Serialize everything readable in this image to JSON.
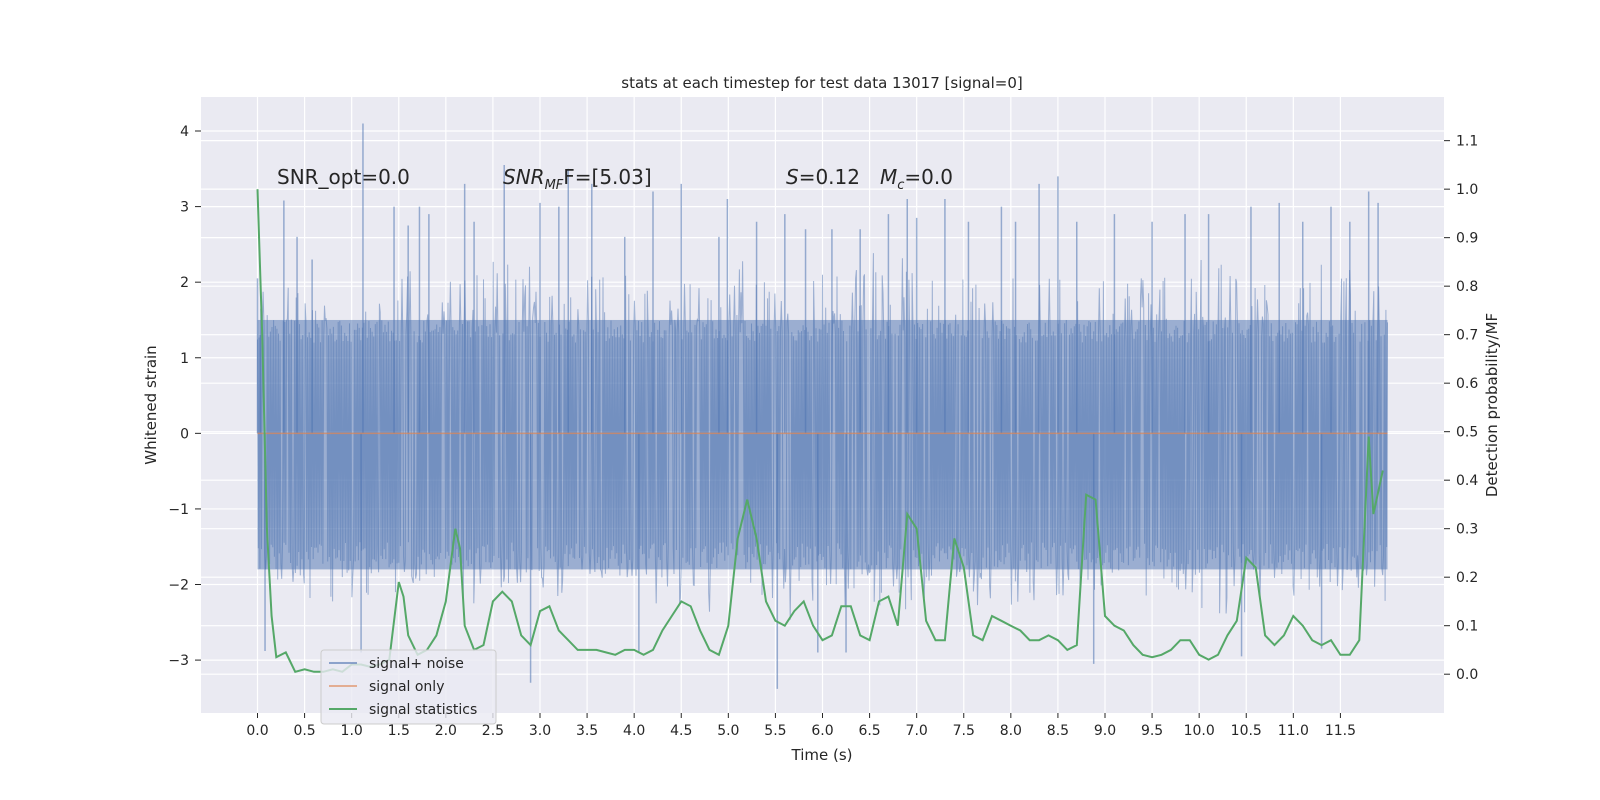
{
  "chart_data": {
    "type": "line",
    "title": "stats at each timestep for test data 13017 [signal=0]",
    "xlabel": "Time (s)",
    "ylabel_left": "Whitened strain",
    "ylabel_right": "Detection probability/MF",
    "xlim": [
      -0.6,
      12.6
    ],
    "ylim_left": [
      -3.7,
      4.45
    ],
    "ylim_right": [
      -0.08,
      1.19
    ],
    "grid": true,
    "legend_position": "lower-left",
    "x_ticks": [
      0.0,
      0.5,
      1.0,
      1.5,
      2.0,
      2.5,
      3.0,
      3.5,
      4.0,
      4.5,
      5.0,
      5.5,
      6.0,
      6.5,
      7.0,
      7.5,
      8.0,
      8.5,
      9.0,
      9.5,
      10.0,
      10.5,
      11.0,
      11.5
    ],
    "x_tick_labels": [
      "0.0",
      "0.5",
      "1.0",
      "1.5",
      "2.0",
      "2.5",
      "3.0",
      "3.5",
      "4.0",
      "4.5",
      "5.0",
      "5.5",
      "6.0",
      "6.5",
      "7.0",
      "7.5",
      "8.0",
      "8.5",
      "9.0",
      "9.5",
      "10.0",
      "10.5",
      "11.0",
      "11.5"
    ],
    "y_left_ticks": [
      -3,
      -2,
      -1,
      0,
      1,
      2,
      3,
      4
    ],
    "y_left_tick_labels": [
      "−3",
      "−2",
      "−1",
      "0",
      "1",
      "2",
      "3",
      "4"
    ],
    "y_right_ticks": [
      0.0,
      0.1,
      0.2,
      0.3,
      0.4,
      0.5,
      0.6,
      0.7,
      0.8,
      0.9,
      1.0,
      1.1
    ],
    "y_right_tick_labels": [
      "0.0",
      "0.1",
      "0.2",
      "0.3",
      "0.4",
      "0.5",
      "0.6",
      "0.7",
      "0.8",
      "0.9",
      "1.0",
      "1.1"
    ],
    "annotations": {
      "snr_opt": "SNR_opt=0.0",
      "snr_mf_main": "SNR",
      "snr_mf_sub": "MF",
      "snr_mf_value": "F=[5.03]",
      "s_main": "S",
      "s_value": "=0.12",
      "mc_main": "M",
      "mc_sub": "c",
      "mc_value": "=0.0"
    },
    "series": [
      {
        "name": "signal+ noise",
        "axis": "left",
        "color": "#4c72b0",
        "style": "dense noise, approx. uniform band ±1.5 with spikes",
        "t_start": 0.0,
        "t_end": 12.0,
        "band_upper": 1.5,
        "band_lower": -1.8,
        "envelope_upper": [
          2.0,
          2.1,
          1.8,
          2.4,
          2.1,
          2.3,
          2.0,
          2.2,
          1.9,
          2.0,
          2.3,
          2.1,
          2.2,
          2.4,
          2.1,
          2.0,
          2.2,
          2.3,
          2.1,
          2.2,
          2.4,
          2.0,
          2.3,
          2.2
        ],
        "envelope_lower": [
          -2.0,
          -2.3,
          -2.2,
          -2.0,
          -2.4,
          -2.1,
          -2.2,
          -2.0,
          -2.3,
          -2.4,
          -2.2,
          -2.5,
          -2.3,
          -2.4,
          -2.2,
          -2.3,
          -2.4,
          -2.2,
          -2.3,
          -2.2,
          -2.4,
          -2.3,
          -2.2,
          -2.3
        ],
        "spikes": [
          {
            "t": 0.0,
            "v": 2.05
          },
          {
            "t": 0.03,
            "v": 1.3
          },
          {
            "t": 0.08,
            "v": -2.88
          },
          {
            "t": 0.28,
            "v": 3.08
          },
          {
            "t": 0.42,
            "v": 2.6
          },
          {
            "t": 0.58,
            "v": 2.3
          },
          {
            "t": 1.12,
            "v": 4.1
          },
          {
            "t": 1.1,
            "v": -2.9
          },
          {
            "t": 1.45,
            "v": 3.0
          },
          {
            "t": 1.6,
            "v": 2.75
          },
          {
            "t": 1.72,
            "v": 3.0
          },
          {
            "t": 1.82,
            "v": 2.9
          },
          {
            "t": 2.2,
            "v": 3.3
          },
          {
            "t": 2.3,
            "v": 2.8
          },
          {
            "t": 2.62,
            "v": 3.55
          },
          {
            "t": 2.9,
            "v": -3.3
          },
          {
            "t": 3.0,
            "v": 3.05
          },
          {
            "t": 3.2,
            "v": 3.0
          },
          {
            "t": 3.3,
            "v": 3.5
          },
          {
            "t": 3.55,
            "v": 3.3
          },
          {
            "t": 3.9,
            "v": 2.6
          },
          {
            "t": 4.05,
            "v": -2.9
          },
          {
            "t": 4.2,
            "v": 3.2
          },
          {
            "t": 4.5,
            "v": 3.3
          },
          {
            "t": 4.9,
            "v": 2.6
          },
          {
            "t": 4.99,
            "v": 3.1
          },
          {
            "t": 5.3,
            "v": 2.8
          },
          {
            "t": 5.52,
            "v": -3.38
          },
          {
            "t": 5.6,
            "v": 2.9
          },
          {
            "t": 5.82,
            "v": 2.7
          },
          {
            "t": 5.95,
            "v": -2.9
          },
          {
            "t": 6.1,
            "v": 2.7
          },
          {
            "t": 6.25,
            "v": -2.9
          },
          {
            "t": 6.4,
            "v": 2.7
          },
          {
            "t": 6.7,
            "v": 2.9
          },
          {
            "t": 6.9,
            "v": 3.1
          },
          {
            "t": 7.0,
            "v": 2.85
          },
          {
            "t": 7.3,
            "v": 3.1
          },
          {
            "t": 7.55,
            "v": 2.8
          },
          {
            "t": 7.9,
            "v": 3.0
          },
          {
            "t": 8.05,
            "v": 2.8
          },
          {
            "t": 8.3,
            "v": 3.3
          },
          {
            "t": 8.5,
            "v": 3.4
          },
          {
            "t": 8.7,
            "v": 2.8
          },
          {
            "t": 8.88,
            "v": -3.05
          },
          {
            "t": 9.1,
            "v": 2.9
          },
          {
            "t": 9.5,
            "v": 2.8
          },
          {
            "t": 9.85,
            "v": 2.9
          },
          {
            "t": 10.1,
            "v": 2.9
          },
          {
            "t": 10.45,
            "v": -2.95
          },
          {
            "t": 10.55,
            "v": 3.0
          },
          {
            "t": 10.85,
            "v": 3.05
          },
          {
            "t": 11.1,
            "v": 2.8
          },
          {
            "t": 11.3,
            "v": -2.85
          },
          {
            "t": 11.4,
            "v": 3.0
          },
          {
            "t": 11.6,
            "v": 2.8
          },
          {
            "t": 11.8,
            "v": 3.2
          },
          {
            "t": 11.9,
            "v": 3.05
          }
        ]
      },
      {
        "name": "signal only",
        "axis": "left",
        "color": "#dd8452",
        "x": [
          0.0,
          12.0
        ],
        "values": [
          0.0,
          0.0
        ]
      },
      {
        "name": "signal statistics",
        "axis": "right",
        "color": "#55a868",
        "x": [
          0.0,
          0.05,
          0.1,
          0.15,
          0.2,
          0.3,
          0.4,
          0.5,
          0.6,
          0.7,
          0.8,
          0.9,
          1.0,
          1.1,
          1.2,
          1.3,
          1.4,
          1.5,
          1.55,
          1.6,
          1.7,
          1.8,
          1.9,
          2.0,
          2.1,
          2.15,
          2.2,
          2.3,
          2.4,
          2.5,
          2.6,
          2.7,
          2.8,
          2.9,
          3.0,
          3.1,
          3.2,
          3.3,
          3.4,
          3.5,
          3.6,
          3.7,
          3.8,
          3.9,
          4.0,
          4.1,
          4.2,
          4.3,
          4.4,
          4.5,
          4.6,
          4.7,
          4.8,
          4.9,
          5.0,
          5.1,
          5.2,
          5.3,
          5.4,
          5.5,
          5.6,
          5.7,
          5.8,
          5.9,
          6.0,
          6.1,
          6.2,
          6.3,
          6.4,
          6.5,
          6.6,
          6.7,
          6.8,
          6.9,
          7.0,
          7.1,
          7.2,
          7.3,
          7.4,
          7.5,
          7.6,
          7.7,
          7.8,
          7.9,
          8.0,
          8.1,
          8.2,
          8.3,
          8.4,
          8.5,
          8.6,
          8.7,
          8.8,
          8.9,
          9.0,
          9.1,
          9.2,
          9.3,
          9.4,
          9.5,
          9.6,
          9.7,
          9.8,
          9.9,
          10.0,
          10.1,
          10.2,
          10.3,
          10.4,
          10.5,
          10.6,
          10.7,
          10.8,
          10.9,
          11.0,
          11.1,
          11.2,
          11.3,
          11.4,
          11.5,
          11.6,
          11.7,
          11.8,
          11.85,
          11.95
        ],
        "values": [
          1.0,
          0.7,
          0.3,
          0.12,
          0.035,
          0.045,
          0.005,
          0.01,
          0.005,
          0.005,
          0.01,
          0.005,
          0.02,
          0.02,
          0.015,
          0.02,
          0.03,
          0.19,
          0.16,
          0.08,
          0.04,
          0.05,
          0.08,
          0.15,
          0.3,
          0.26,
          0.1,
          0.05,
          0.06,
          0.15,
          0.17,
          0.15,
          0.08,
          0.06,
          0.13,
          0.14,
          0.09,
          0.07,
          0.05,
          0.05,
          0.05,
          0.045,
          0.04,
          0.05,
          0.05,
          0.04,
          0.05,
          0.09,
          0.12,
          0.15,
          0.14,
          0.09,
          0.05,
          0.04,
          0.1,
          0.28,
          0.36,
          0.28,
          0.15,
          0.11,
          0.1,
          0.13,
          0.15,
          0.1,
          0.07,
          0.08,
          0.14,
          0.14,
          0.08,
          0.07,
          0.15,
          0.16,
          0.1,
          0.33,
          0.3,
          0.11,
          0.07,
          0.07,
          0.28,
          0.22,
          0.08,
          0.07,
          0.12,
          0.11,
          0.1,
          0.09,
          0.07,
          0.07,
          0.08,
          0.07,
          0.05,
          0.06,
          0.37,
          0.36,
          0.12,
          0.1,
          0.09,
          0.06,
          0.04,
          0.035,
          0.04,
          0.05,
          0.07,
          0.07,
          0.04,
          0.03,
          0.04,
          0.08,
          0.11,
          0.24,
          0.22,
          0.08,
          0.06,
          0.08,
          0.12,
          0.1,
          0.07,
          0.06,
          0.07,
          0.04,
          0.04,
          0.07,
          0.49,
          0.33,
          0.42
        ]
      }
    ]
  }
}
